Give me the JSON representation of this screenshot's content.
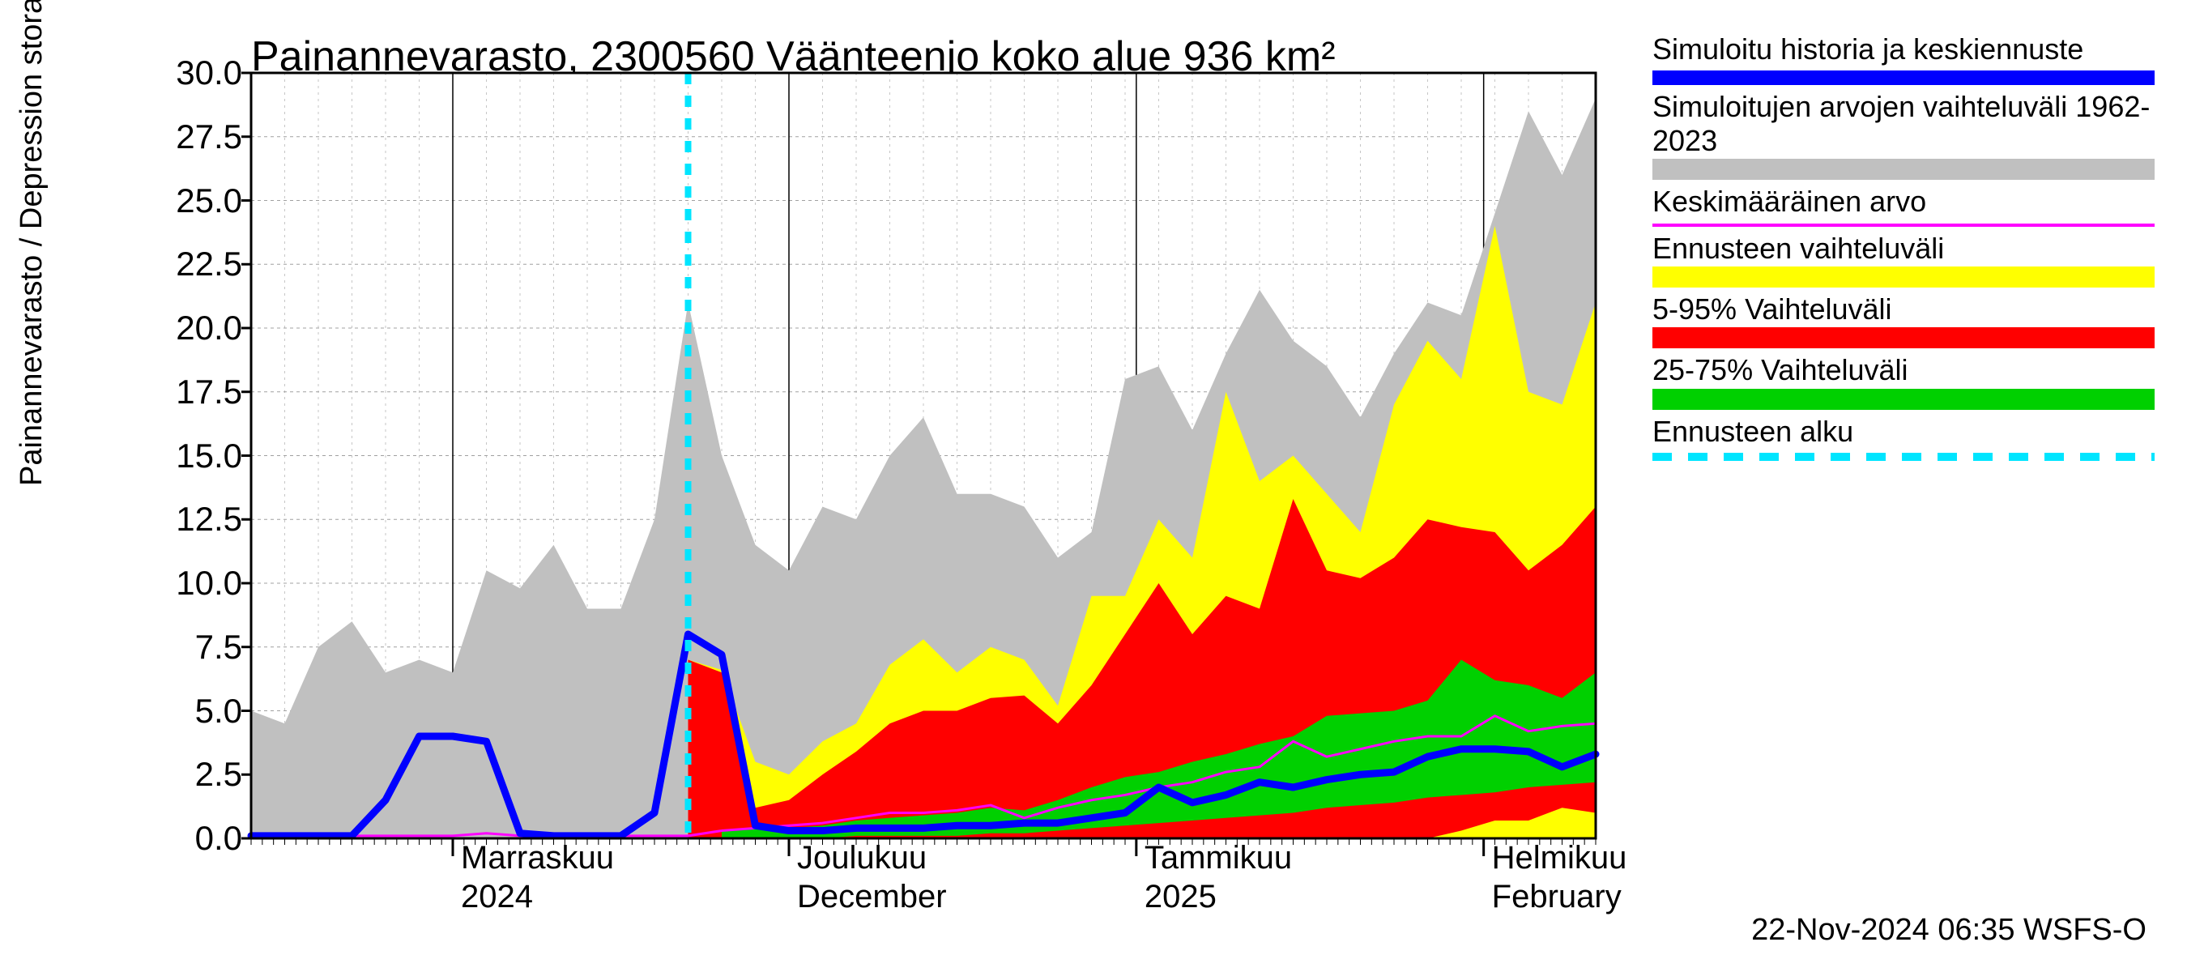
{
  "title": "Painannevarasto, 2300560 Väänteenjo koko alue 936 km²",
  "ylabel": "Painannevarasto / Depression storage    mm",
  "timestamp": "22-Nov-2024 06:35 WSFS-O",
  "chart": {
    "type": "area+line",
    "background_color": "#ffffff",
    "grid_color": "#a0a0a0",
    "axis_color": "#000000",
    "title_fontsize": 52,
    "label_fontsize": 38,
    "tick_fontsize": 42,
    "ylim": [
      0,
      30
    ],
    "ytick_step": 2.5,
    "xlim_days": [
      0,
      120
    ],
    "x_month_ticks": [
      {
        "day": 18,
        "upper": "Marraskuu",
        "lower": "2024"
      },
      {
        "day": 48,
        "upper": "Joulukuu",
        "lower": "December"
      },
      {
        "day": 79,
        "upper": "Tammikuu",
        "lower": "2025"
      },
      {
        "day": 110,
        "upper": "Helmikuu",
        "lower": "February"
      }
    ],
    "x_minor_step_days": 1,
    "forecast_start_day": 39,
    "colors": {
      "sim_history": "#0000ff",
      "hist_range": "#c0c0c0",
      "mean": "#ff00ff",
      "forecast_range": "#ffff00",
      "p5_95": "#ff0000",
      "p25_75": "#00d000",
      "forecast_start": "#00e5ff"
    },
    "line_widths": {
      "sim_history": 9,
      "mean": 3,
      "forecast_start_dash": "14,14",
      "forecast_start_width": 8
    },
    "series": {
      "x_days": [
        0,
        3,
        6,
        9,
        12,
        15,
        18,
        21,
        24,
        27,
        30,
        33,
        36,
        39,
        42,
        45,
        48,
        51,
        54,
        57,
        60,
        63,
        66,
        69,
        72,
        75,
        78,
        81,
        84,
        87,
        90,
        93,
        96,
        99,
        102,
        105,
        108,
        111,
        114,
        117,
        120
      ],
      "hist_range_hi": [
        5.0,
        4.5,
        7.5,
        8.5,
        6.5,
        7.0,
        6.5,
        10.5,
        9.8,
        11.5,
        9.0,
        9.0,
        12.5,
        21.0,
        15.0,
        11.5,
        10.5,
        13.0,
        12.5,
        15.0,
        16.5,
        13.5,
        13.5,
        13.0,
        11.0,
        12.0,
        18.0,
        18.5,
        16.0,
        19.0,
        21.5,
        19.5,
        18.5,
        16.5,
        19.0,
        21.0,
        20.5,
        24.5,
        28.5,
        26.0,
        29.0
      ],
      "hist_range_lo": [
        0,
        0,
        0,
        0,
        0,
        0,
        0,
        0,
        0,
        0,
        0,
        0,
        0,
        0,
        0,
        0,
        0,
        0,
        0,
        0,
        0,
        0,
        0,
        0,
        0,
        0,
        0,
        0,
        0,
        0,
        0,
        0,
        0,
        0,
        0,
        0,
        0,
        0,
        0,
        0,
        0
      ],
      "mean_line": [
        0.1,
        0.1,
        0.1,
        0.1,
        0.1,
        0.1,
        0.1,
        0.2,
        0.1,
        0.1,
        0.1,
        0.1,
        0.1,
        0.1,
        0.3,
        0.4,
        0.5,
        0.6,
        0.8,
        1.0,
        1.0,
        1.1,
        1.3,
        0.8,
        1.2,
        1.5,
        1.7,
        2.0,
        2.2,
        2.6,
        2.8,
        3.8,
        3.2,
        3.5,
        3.8,
        4.0,
        4.0,
        4.8,
        4.2,
        4.4,
        4.5
      ],
      "forecast_hi": [
        null,
        null,
        null,
        null,
        null,
        null,
        null,
        null,
        null,
        null,
        null,
        null,
        null,
        7.0,
        6.6,
        3.0,
        2.5,
        3.8,
        4.5,
        6.8,
        7.8,
        6.5,
        7.5,
        7.0,
        5.2,
        9.5,
        9.5,
        12.5,
        11.0,
        17.5,
        14.0,
        15.0,
        13.5,
        12.0,
        17.0,
        19.5,
        18.0,
        24.0,
        17.5,
        17.0,
        21.0
      ],
      "forecast_lo": [
        null,
        null,
        null,
        null,
        null,
        null,
        null,
        null,
        null,
        null,
        null,
        null,
        null,
        0,
        0,
        0,
        0,
        0,
        0,
        0,
        0,
        0,
        0,
        0,
        0,
        0,
        0,
        0,
        0,
        0,
        0,
        0,
        0,
        0,
        0,
        0,
        0,
        0,
        0,
        0,
        0
      ],
      "p5_95_hi": [
        null,
        null,
        null,
        null,
        null,
        null,
        null,
        null,
        null,
        null,
        null,
        null,
        null,
        7.0,
        6.5,
        1.2,
        1.5,
        2.5,
        3.4,
        4.5,
        5.0,
        5.0,
        5.5,
        5.6,
        4.5,
        6.0,
        8.0,
        10.0,
        8.0,
        9.5,
        9.0,
        13.3,
        10.5,
        10.2,
        11.0,
        12.5,
        12.2,
        12.0,
        10.5,
        11.5,
        13.0
      ],
      "p5_95_lo": [
        null,
        null,
        null,
        null,
        null,
        null,
        null,
        null,
        null,
        null,
        null,
        null,
        null,
        0,
        0,
        0,
        0,
        0,
        0,
        0,
        0,
        0,
        0,
        0,
        0,
        0,
        0,
        0,
        0,
        0,
        0,
        0,
        0,
        0,
        0,
        0,
        0.3,
        0.7,
        0.7,
        1.2,
        1.0
      ],
      "p25_75_hi": [
        null,
        null,
        null,
        null,
        null,
        null,
        null,
        null,
        null,
        null,
        null,
        null,
        null,
        null,
        0.3,
        0.4,
        0.4,
        0.5,
        0.7,
        0.8,
        0.9,
        1.0,
        1.2,
        1.1,
        1.5,
        2.0,
        2.4,
        2.6,
        3.0,
        3.3,
        3.7,
        4.0,
        4.8,
        4.9,
        5.0,
        5.4,
        7.0,
        6.2,
        6.0,
        5.5,
        6.5
      ],
      "p25_75_lo": [
        null,
        null,
        null,
        null,
        null,
        null,
        null,
        null,
        null,
        null,
        null,
        null,
        null,
        null,
        0,
        0,
        0,
        0,
        0.1,
        0.1,
        0.1,
        0.1,
        0.2,
        0.2,
        0.3,
        0.4,
        0.5,
        0.6,
        0.7,
        0.8,
        0.9,
        1.0,
        1.2,
        1.3,
        1.4,
        1.6,
        1.7,
        1.8,
        2.0,
        2.1,
        2.2
      ],
      "blue_line": [
        0.1,
        0.1,
        0.1,
        0.1,
        1.5,
        4.0,
        4.0,
        3.8,
        0.2,
        0.1,
        0.1,
        0.1,
        1.0,
        8.0,
        7.2,
        0.5,
        0.3,
        0.3,
        0.4,
        0.4,
        0.4,
        0.5,
        0.5,
        0.6,
        0.6,
        0.8,
        1.0,
        2.0,
        1.4,
        1.7,
        2.2,
        2.0,
        2.3,
        2.5,
        2.6,
        3.2,
        3.5,
        3.5,
        3.4,
        2.8,
        3.3
      ]
    }
  },
  "legend": [
    {
      "label": "Simuloitu historia ja keskiennuste",
      "kind": "line",
      "color": "#0000ff",
      "width": 18
    },
    {
      "label": "Simuloitujen arvojen vaihteluväli 1962-2023",
      "kind": "fill",
      "color": "#c0c0c0"
    },
    {
      "label": "Keskimääräinen arvo",
      "kind": "line",
      "color": "#ff00ff",
      "width": 4
    },
    {
      "label": "Ennusteen vaihteluväli",
      "kind": "fill",
      "color": "#ffff00"
    },
    {
      "label": "5-95% Vaihteluväli",
      "kind": "fill",
      "color": "#ff0000"
    },
    {
      "label": "25-75% Vaihteluväli",
      "kind": "fill",
      "color": "#00d000"
    },
    {
      "label": "Ennusteen alku",
      "kind": "dash",
      "color": "#00e5ff",
      "width": 10
    }
  ]
}
